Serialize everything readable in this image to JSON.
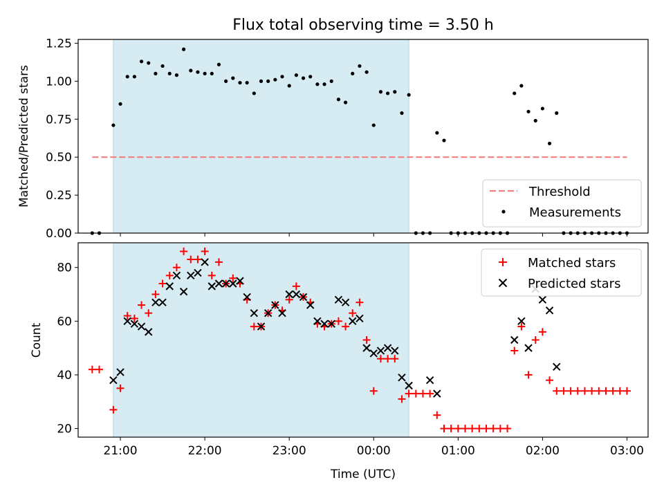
{
  "chart_data": [
    {
      "type": "scatter",
      "title": "Flux total observing time = 3.50 h",
      "ylabel": "Matched/Predicted stars",
      "xlabel": "",
      "xlim": [
        "20:30",
        "03:15"
      ],
      "ylim": [
        0,
        1.275
      ],
      "x_ticks": [
        "21:00",
        "22:00",
        "23:00",
        "00:00",
        "01:00",
        "02:00",
        "03:00"
      ],
      "y_ticks": [
        "0.00",
        "0.25",
        "0.50",
        "0.75",
        "1.00",
        "1.25"
      ],
      "x_tick_labels_shown": false,
      "shaded_region": [
        "20:55",
        "00:25"
      ],
      "legend_position": "lower right",
      "threshold": {
        "name": "Threshold",
        "value": 0.5,
        "x_range": [
          "20:40",
          "03:00"
        ],
        "color": "#f08080",
        "style": "dashed"
      },
      "series": [
        {
          "name": "Measurements",
          "marker": "dot",
          "color": "#000000",
          "x": [
            "20:40",
            "20:45",
            "20:55",
            "21:00",
            "21:05",
            "21:10",
            "21:15",
            "21:20",
            "21:25",
            "21:30",
            "21:35",
            "21:40",
            "21:45",
            "21:50",
            "21:55",
            "22:00",
            "22:05",
            "22:10",
            "22:15",
            "22:20",
            "22:25",
            "22:30",
            "22:35",
            "22:40",
            "22:45",
            "22:50",
            "22:55",
            "23:00",
            "23:05",
            "23:10",
            "23:15",
            "23:20",
            "23:25",
            "23:30",
            "23:35",
            "23:40",
            "23:45",
            "23:50",
            "23:55",
            "00:00",
            "00:05",
            "00:10",
            "00:15",
            "00:20",
            "00:25",
            "00:30",
            "00:35",
            "00:40",
            "00:45",
            "00:50",
            "00:55",
            "01:00",
            "01:05",
            "01:10",
            "01:15",
            "01:20",
            "01:25",
            "01:30",
            "01:35",
            "01:40",
            "01:45",
            "01:50",
            "01:55",
            "02:00",
            "02:05",
            "02:10",
            "02:15",
            "02:20",
            "02:25",
            "02:30",
            "02:35",
            "02:40",
            "02:45",
            "02:50",
            "02:55",
            "03:00"
          ],
          "y": [
            0,
            0,
            0.71,
            0.85,
            1.03,
            1.03,
            1.13,
            1.12,
            1.05,
            1.1,
            1.05,
            1.04,
            1.21,
            1.07,
            1.06,
            1.05,
            1.05,
            1.11,
            1.0,
            1.02,
            0.99,
            0.99,
            0.92,
            1.0,
            1.0,
            1.01,
            1.03,
            0.97,
            1.04,
            1.02,
            1.03,
            0.98,
            0.98,
            1.0,
            0.88,
            0.86,
            1.05,
            1.1,
            1.06,
            0.71,
            0.93,
            0.92,
            0.93,
            0.79,
            0.91,
            0,
            0,
            0,
            0.66,
            0.61,
            0,
            0,
            0,
            0,
            0,
            0,
            0,
            0,
            0,
            0.92,
            0.97,
            0.8,
            0.74,
            0.82,
            0.59,
            0.79,
            0,
            0,
            0,
            0,
            0,
            0,
            0,
            0,
            0,
            0
          ]
        }
      ]
    },
    {
      "type": "scatter",
      "title": "",
      "xlabel": "Time (UTC)",
      "ylabel": "Count",
      "xlim": [
        "20:30",
        "03:15"
      ],
      "ylim": [
        16.8,
        89.2
      ],
      "x_ticks": [
        "21:00",
        "22:00",
        "23:00",
        "00:00",
        "01:00",
        "02:00",
        "03:00"
      ],
      "y_ticks": [
        "20",
        "40",
        "60",
        "80"
      ],
      "shaded_region": [
        "20:55",
        "00:25"
      ],
      "legend_position": "upper right",
      "series": [
        {
          "name": "Matched stars",
          "marker": "plus",
          "color": "#ff0000",
          "x": [
            "20:40",
            "20:45",
            "20:55",
            "21:00",
            "21:05",
            "21:10",
            "21:15",
            "21:20",
            "21:25",
            "21:30",
            "21:35",
            "21:40",
            "21:45",
            "21:50",
            "21:55",
            "22:00",
            "22:05",
            "22:10",
            "22:15",
            "22:20",
            "22:25",
            "22:30",
            "22:35",
            "22:40",
            "22:45",
            "22:50",
            "22:55",
            "23:00",
            "23:05",
            "23:10",
            "23:15",
            "23:20",
            "23:25",
            "23:30",
            "23:35",
            "23:40",
            "23:45",
            "23:50",
            "23:55",
            "00:00",
            "00:05",
            "00:10",
            "00:15",
            "00:20",
            "00:25",
            "00:30",
            "00:35",
            "00:40",
            "00:45",
            "00:50",
            "00:55",
            "01:00",
            "01:05",
            "01:10",
            "01:15",
            "01:20",
            "01:25",
            "01:30",
            "01:35",
            "01:40",
            "01:45",
            "01:50",
            "01:55",
            "02:00",
            "02:05",
            "02:10",
            "02:15",
            "02:20",
            "02:25",
            "02:30",
            "02:35",
            "02:40",
            "02:45",
            "02:50",
            "02:55",
            "03:00"
          ],
          "y": [
            42,
            42,
            27,
            35,
            62,
            61,
            66,
            63,
            70,
            74,
            77,
            80,
            86,
            83,
            83,
            86,
            77,
            82,
            74,
            76,
            74,
            68,
            58,
            58,
            63,
            66,
            64,
            68,
            73,
            69,
            67,
            59,
            58,
            59,
            60,
            58,
            63,
            67,
            53,
            34,
            46,
            46,
            46,
            31,
            33,
            33,
            33,
            33,
            25,
            20,
            20,
            20,
            20,
            20,
            20,
            20,
            20,
            20,
            20,
            49,
            58,
            40,
            53,
            56,
            38,
            34,
            34,
            34,
            34,
            34,
            34,
            34,
            34,
            34,
            34,
            34
          ]
        },
        {
          "name": "Predicted stars",
          "marker": "x",
          "color": "#000000",
          "x": [
            "20:55",
            "21:00",
            "21:05",
            "21:10",
            "21:15",
            "21:20",
            "21:25",
            "21:30",
            "21:35",
            "21:40",
            "21:45",
            "21:50",
            "21:55",
            "22:00",
            "22:05",
            "22:10",
            "22:15",
            "22:20",
            "22:25",
            "22:30",
            "22:35",
            "22:40",
            "22:45",
            "22:50",
            "22:55",
            "23:00",
            "23:05",
            "23:10",
            "23:15",
            "23:20",
            "23:25",
            "23:30",
            "23:35",
            "23:40",
            "23:45",
            "23:50",
            "23:55",
            "00:00",
            "00:05",
            "00:10",
            "00:15",
            "00:20",
            "00:25",
            "00:40",
            "00:45",
            "01:40",
            "01:45",
            "01:50",
            "01:55",
            "02:00",
            "02:05",
            "02:10"
          ],
          "y": [
            38,
            41,
            60,
            59,
            58,
            56,
            67,
            67,
            73,
            77,
            71,
            77,
            78,
            82,
            73,
            74,
            74,
            74,
            75,
            69,
            63,
            58,
            63,
            66,
            63,
            70,
            70,
            69,
            66,
            60,
            59,
            59,
            68,
            67,
            60,
            61,
            50,
            48,
            49,
            50,
            49,
            39,
            36,
            38,
            33,
            53,
            60,
            50,
            72,
            68,
            64,
            43
          ]
        }
      ]
    }
  ]
}
